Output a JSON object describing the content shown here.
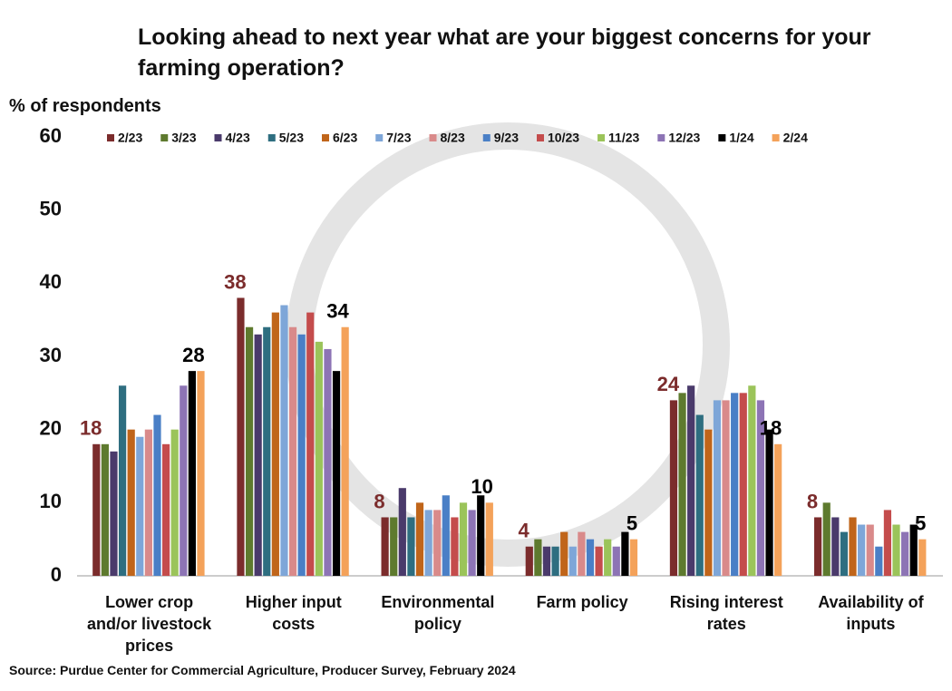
{
  "chart_data": {
    "type": "bar",
    "title": "Looking ahead to next year what are your biggest concerns for your farming operation?",
    "y_label": "% of respondents",
    "source": "Source: Purdue Center for Commercial Agriculture, Producer Survey, February 2024",
    "categories": [
      "Lower crop and/or livestock prices",
      "Higher input costs",
      "Environmental policy",
      "Farm policy",
      "Rising interest rates",
      "Availability of inputs"
    ],
    "ylim": [
      0,
      60
    ],
    "yticks": [
      0,
      10,
      20,
      30,
      40,
      50,
      60
    ],
    "grid": false,
    "legend": "top",
    "series": [
      {
        "name": "2/23",
        "color": "#7b2c2c",
        "labels": true,
        "values": [
          18,
          38,
          8,
          4,
          24,
          8
        ]
      },
      {
        "name": "3/23",
        "color": "#5e7a2e",
        "values": [
          18,
          34,
          8,
          5,
          25,
          10
        ]
      },
      {
        "name": "4/23",
        "color": "#4a3a6b",
        "values": [
          17,
          33,
          12,
          4,
          26,
          8
        ]
      },
      {
        "name": "5/23",
        "color": "#2e6e80",
        "values": [
          26,
          34,
          8,
          4,
          22,
          6
        ]
      },
      {
        "name": "6/23",
        "color": "#c0651a",
        "values": [
          20,
          36,
          10,
          6,
          20,
          8
        ]
      },
      {
        "name": "7/23",
        "color": "#7ea6d8",
        "values": [
          19,
          37,
          9,
          4,
          24,
          7
        ]
      },
      {
        "name": "8/23",
        "color": "#d98a8a",
        "values": [
          20,
          34,
          9,
          6,
          24,
          7
        ]
      },
      {
        "name": "9/23",
        "color": "#4a7fc6",
        "values": [
          22,
          33,
          11,
          5,
          25,
          4
        ]
      },
      {
        "name": "10/23",
        "color": "#c44c4c",
        "values": [
          18,
          36,
          8,
          4,
          25,
          9
        ]
      },
      {
        "name": "11/23",
        "color": "#9bc45a",
        "values": [
          20,
          32,
          10,
          5,
          26,
          7
        ]
      },
      {
        "name": "12/23",
        "color": "#8d74b5",
        "values": [
          26,
          31,
          9,
          4,
          24,
          6
        ]
      },
      {
        "name": "1/24",
        "color": "#000000",
        "values": [
          28,
          28,
          11,
          6,
          20,
          7
        ]
      },
      {
        "name": "2/24",
        "color": "#f4a25a",
        "labels": true,
        "values": [
          28,
          34,
          10,
          5,
          18,
          5
        ]
      }
    ]
  }
}
